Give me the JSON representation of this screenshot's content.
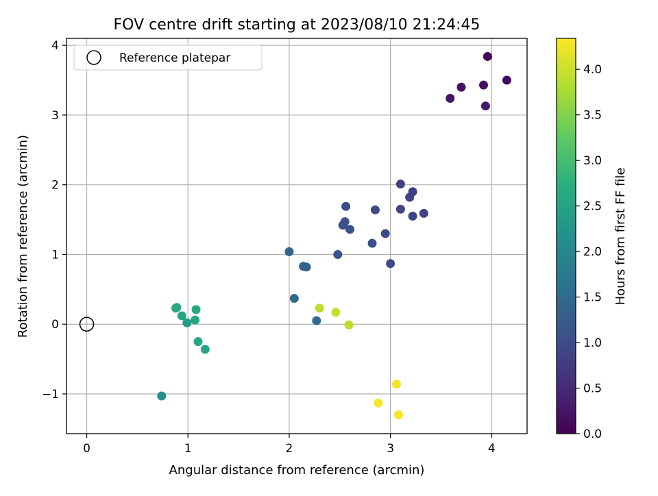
{
  "chart_data": {
    "type": "scatter",
    "title": "FOV centre drift starting at 2023/08/10 21:24:45",
    "xlabel": "Angular distance from reference (arcmin)",
    "ylabel": "Rotation from reference (arcmin)",
    "xlim": [
      -0.2,
      4.35
    ],
    "ylim": [
      -1.57,
      4.1
    ],
    "xticks": [
      0,
      1,
      2,
      3,
      4
    ],
    "yticks": [
      -1,
      0,
      1,
      2,
      3,
      4
    ],
    "grid": true,
    "legend": {
      "position": "top-left",
      "entries": [
        "Reference platepar"
      ]
    },
    "reference_point": {
      "x": 0,
      "y": 0
    },
    "colorbar": {
      "label": "Hours from first FF file",
      "colormap": "viridis",
      "range": [
        0.0,
        4.34
      ],
      "ticks": [
        0.0,
        0.5,
        1.0,
        1.5,
        2.0,
        2.5,
        3.0,
        3.5,
        4.0
      ],
      "tick_labels": [
        "0.0",
        "0.5",
        "1.0",
        "1.5",
        "2.0",
        "2.5",
        "3.0",
        "3.5",
        "4.0"
      ]
    },
    "points": [
      {
        "x": 3.96,
        "y": 3.84,
        "c": 0.05
      },
      {
        "x": 4.15,
        "y": 3.5,
        "c": 0.1
      },
      {
        "x": 3.92,
        "y": 3.43,
        "c": 0.15
      },
      {
        "x": 3.7,
        "y": 3.4,
        "c": 0.2
      },
      {
        "x": 3.59,
        "y": 3.24,
        "c": 0.25
      },
      {
        "x": 3.94,
        "y": 3.13,
        "c": 0.3
      },
      {
        "x": 3.1,
        "y": 2.01,
        "c": 0.85
      },
      {
        "x": 3.22,
        "y": 1.9,
        "c": 0.8
      },
      {
        "x": 3.19,
        "y": 1.82,
        "c": 0.85
      },
      {
        "x": 2.56,
        "y": 1.69,
        "c": 1.0
      },
      {
        "x": 2.85,
        "y": 1.64,
        "c": 0.95
      },
      {
        "x": 3.1,
        "y": 1.65,
        "c": 0.9
      },
      {
        "x": 3.33,
        "y": 1.59,
        "c": 0.85
      },
      {
        "x": 3.22,
        "y": 1.55,
        "c": 0.9
      },
      {
        "x": 2.55,
        "y": 1.47,
        "c": 1.05
      },
      {
        "x": 2.53,
        "y": 1.42,
        "c": 1.05
      },
      {
        "x": 2.6,
        "y": 1.36,
        "c": 1.05
      },
      {
        "x": 2.95,
        "y": 1.3,
        "c": 1.0
      },
      {
        "x": 2.82,
        "y": 1.16,
        "c": 1.05
      },
      {
        "x": 2.0,
        "y": 1.04,
        "c": 1.4
      },
      {
        "x": 2.48,
        "y": 1.0,
        "c": 1.1
      },
      {
        "x": 3.0,
        "y": 0.87,
        "c": 0.95
      },
      {
        "x": 2.14,
        "y": 0.83,
        "c": 1.35
      },
      {
        "x": 2.17,
        "y": 0.82,
        "c": 1.35
      },
      {
        "x": 2.05,
        "y": 0.37,
        "c": 1.5
      },
      {
        "x": 2.27,
        "y": 0.05,
        "c": 1.55
      },
      {
        "x": 2.3,
        "y": 0.23,
        "c": 3.9
      },
      {
        "x": 2.46,
        "y": 0.17,
        "c": 3.95
      },
      {
        "x": 2.59,
        "y": -0.01,
        "c": 3.9
      },
      {
        "x": 0.88,
        "y": 0.23,
        "c": 2.6
      },
      {
        "x": 0.89,
        "y": 0.24,
        "c": 2.6
      },
      {
        "x": 0.94,
        "y": 0.12,
        "c": 2.55
      },
      {
        "x": 1.08,
        "y": 0.21,
        "c": 2.6
      },
      {
        "x": 1.07,
        "y": 0.06,
        "c": 2.55
      },
      {
        "x": 0.99,
        "y": 0.02,
        "c": 2.4
      },
      {
        "x": 1.1,
        "y": -0.25,
        "c": 2.55
      },
      {
        "x": 1.17,
        "y": -0.36,
        "c": 2.55
      },
      {
        "x": 0.74,
        "y": -1.03,
        "c": 2.2
      },
      {
        "x": 3.06,
        "y": -0.86,
        "c": 4.25
      },
      {
        "x": 2.88,
        "y": -1.13,
        "c": 4.3
      },
      {
        "x": 3.08,
        "y": -1.3,
        "c": 4.3
      }
    ]
  }
}
